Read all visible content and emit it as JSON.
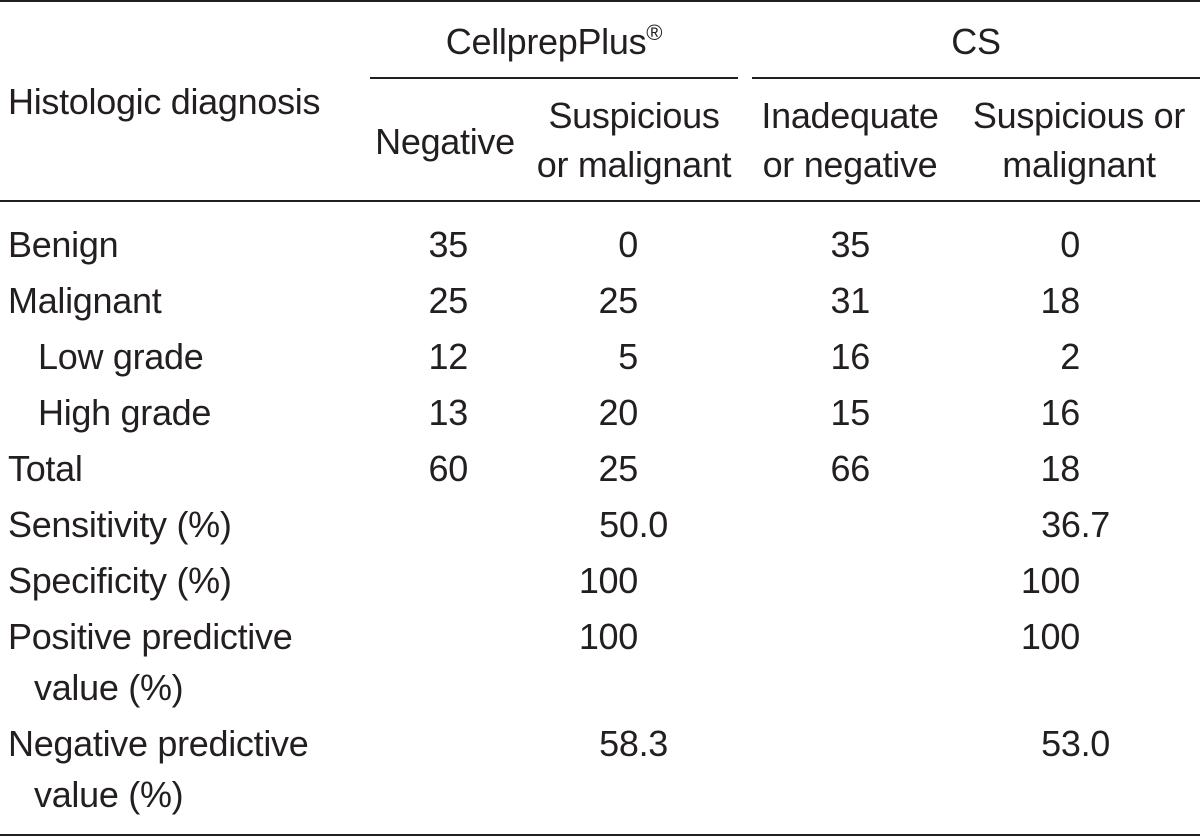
{
  "table": {
    "header": {
      "histologic": "Histologic diagnosis",
      "group1": "CellprepPlus",
      "group1_mark": "®",
      "group2": "CS",
      "g1_col1": "Negative",
      "g1_col2_line1": "Suspicious",
      "g1_col2_line2": "or malignant",
      "g2_col1_line1": "Inadequate",
      "g2_col1_line2": "or negative",
      "g2_col2_line1": "Suspicious or",
      "g2_col2_line2": "malignant"
    },
    "rows": [
      {
        "label": "Benign",
        "v": [
          "35",
          "0",
          "35",
          "0"
        ]
      },
      {
        "label": "Malignant",
        "v": [
          "25",
          "25",
          "31",
          "18"
        ]
      },
      {
        "label": "Low grade",
        "v": [
          "12",
          "5",
          "16",
          "2"
        ]
      },
      {
        "label": "High grade",
        "v": [
          "13",
          "20",
          "15",
          "16"
        ]
      },
      {
        "label": "Total",
        "v": [
          "60",
          "25",
          "66",
          "18"
        ]
      }
    ],
    "stats": [
      {
        "label": "Sensitivity (%)",
        "label2": "",
        "cp": "50.0",
        "cs": "36.7"
      },
      {
        "label": "Specificity (%)",
        "label2": "",
        "cp": "100",
        "cs": "100"
      },
      {
        "label": "Positive predictive",
        "label2": "value (%)",
        "cp": "100",
        "cs": "100"
      },
      {
        "label": "Negative predictive",
        "label2": "value (%)",
        "cp": "58.3",
        "cs": "53.0"
      }
    ]
  }
}
